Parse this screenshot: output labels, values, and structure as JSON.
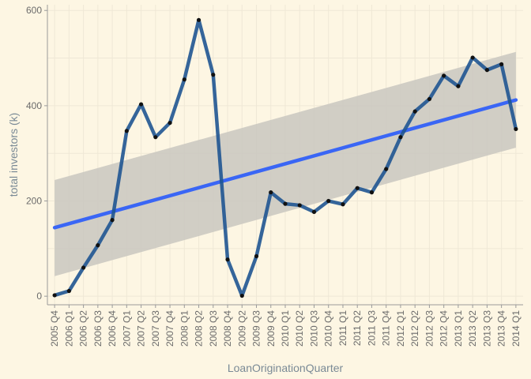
{
  "chart_data": {
    "type": "line",
    "title": "",
    "xlabel": "LoanOriginationQuarter",
    "ylabel": "total investors (k)",
    "categories": [
      "2005 Q4",
      "2006 Q1",
      "2006 Q2",
      "2006 Q3",
      "2006 Q4",
      "2007 Q1",
      "2007 Q2",
      "2007 Q3",
      "2007 Q4",
      "2008 Q1",
      "2008 Q2",
      "2008 Q3",
      "2008 Q4",
      "2009 Q2",
      "2009 Q3",
      "2009 Q4",
      "2010 Q1",
      "2010 Q2",
      "2010 Q3",
      "2010 Q4",
      "2011 Q1",
      "2011 Q2",
      "2011 Q3",
      "2011 Q4",
      "2012 Q1",
      "2012 Q2",
      "2012 Q3",
      "2012 Q4",
      "2013 Q1",
      "2013 Q2",
      "2013 Q3",
      "2013 Q4",
      "2014 Q1"
    ],
    "series": [
      {
        "values": [
          2,
          11,
          60,
          107,
          160,
          347,
          403,
          334,
          364,
          455,
          580,
          465,
          77,
          1,
          84,
          218,
          194,
          191,
          177,
          200,
          193,
          227,
          218,
          267,
          334,
          388,
          414,
          463,
          441,
          501,
          475,
          487,
          351
        ],
        "color": "#1f5591"
      }
    ],
    "trend": {
      "type": "linear",
      "start": 144,
      "end": 412,
      "band_lower": [
        42,
        312
      ],
      "band_upper": [
        244,
        513
      ],
      "color": "#3a66f5",
      "band_color": "#c9c7bf"
    },
    "yticks": [
      0,
      200,
      400,
      600
    ],
    "ylim": [
      -18,
      612
    ],
    "grid": true,
    "legend": "none",
    "colors": {
      "background": "#fdf6e3",
      "grid": "#efe8d6",
      "axis": "#9a9a9a"
    }
  }
}
